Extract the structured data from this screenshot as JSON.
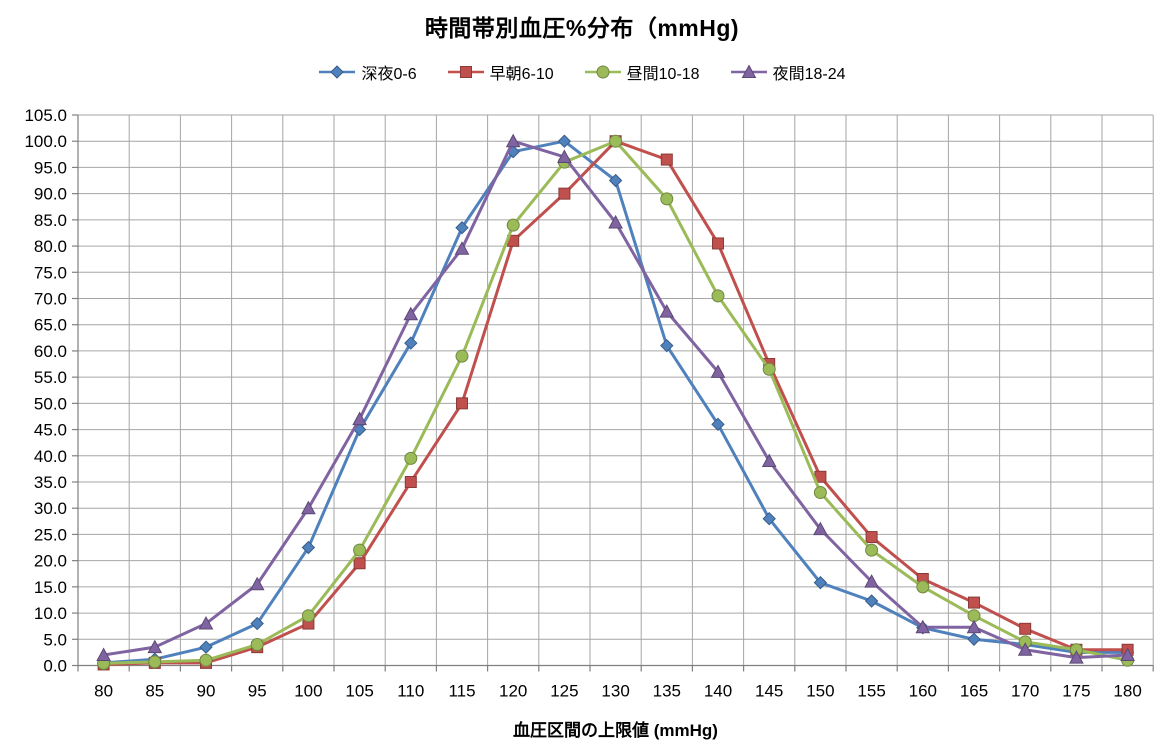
{
  "chart": {
    "title": "時間帯別血圧%分布（mmHg)",
    "x_axis_title": "血圧区間の上限値 (mmHg)"
  },
  "chart_data": {
    "type": "line",
    "title": "時間帯別血圧%分布（mmHg)",
    "xlabel": "血圧区間の上限値 (mmHg)",
    "ylabel": "",
    "ylim": [
      0,
      105
    ],
    "ytick_step": 5,
    "grid": true,
    "legend_position": "top",
    "categories": [
      80,
      85,
      90,
      95,
      100,
      105,
      110,
      115,
      120,
      125,
      130,
      135,
      140,
      145,
      150,
      155,
      160,
      165,
      170,
      175,
      180
    ],
    "series": [
      {
        "name": "深夜0-6",
        "color": "#4F81BD",
        "marker": "diamond",
        "values": [
          0.5,
          1.2,
          3.5,
          8.0,
          22.5,
          45.0,
          61.5,
          83.5,
          98.0,
          100.0,
          92.5,
          61.0,
          46.0,
          28.0,
          15.8,
          12.3,
          7.2,
          5.0,
          4.0,
          2.5,
          2.5
        ]
      },
      {
        "name": "早朝6-10",
        "color": "#C0504D",
        "marker": "square",
        "values": [
          0.2,
          0.5,
          0.5,
          3.5,
          8.0,
          19.5,
          35.0,
          50.0,
          81.0,
          90.0,
          100.0,
          96.5,
          80.5,
          57.5,
          36.0,
          24.5,
          16.5,
          12.0,
          7.0,
          3.0,
          3.0
        ]
      },
      {
        "name": "昼間10-18",
        "color": "#9BBB59",
        "marker": "circle",
        "values": [
          0.4,
          0.7,
          1.0,
          4.0,
          9.5,
          22.0,
          39.5,
          59.0,
          84.0,
          96.0,
          100.0,
          89.0,
          70.5,
          56.5,
          33.0,
          22.0,
          15.0,
          9.5,
          4.5,
          3.0,
          1.0
        ]
      },
      {
        "name": "夜間18-24",
        "color": "#8064A2",
        "marker": "triangle",
        "values": [
          2.0,
          3.5,
          8.0,
          15.5,
          30.0,
          47.0,
          67.0,
          79.5,
          100.0,
          97.0,
          84.5,
          67.5,
          56.0,
          39.0,
          26.0,
          16.0,
          7.3,
          7.3,
          3.0,
          1.5,
          2.0
        ]
      }
    ],
    "gridline_color": "#A6A6A6",
    "axis_color": "#808080",
    "text_color": "#000000"
  }
}
